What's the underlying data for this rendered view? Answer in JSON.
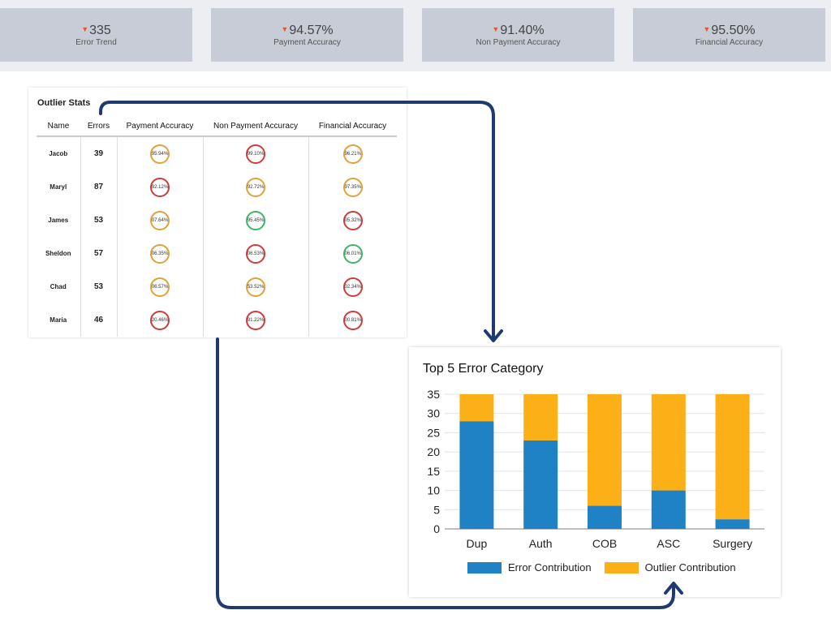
{
  "kpis": [
    {
      "value": "335",
      "label": "Error Trend"
    },
    {
      "value": "94.57%",
      "label": "Payment Accuracy"
    },
    {
      "value": "91.40%",
      "label": "Non Payment Accuracy"
    },
    {
      "value": "95.50%",
      "label": "Financial Accuracy"
    }
  ],
  "outlier_stats": {
    "title": "Outlier Stats",
    "columns": [
      "Name",
      "Errors",
      "Payment Accuracy",
      "Non Payment Accuracy",
      "Financial Accuracy"
    ],
    "rows": [
      {
        "name": "Jacob",
        "errors": "39",
        "payment": "95.94%",
        "non_payment": "99.10%",
        "financial": "96.21%"
      },
      {
        "name": "Maryl",
        "errors": "87",
        "payment": "92.12%",
        "non_payment": "92.72%",
        "financial": "97.35%"
      },
      {
        "name": "James",
        "errors": "53",
        "payment": "07.64%",
        "non_payment": "95.45%",
        "financial": "05.32%"
      },
      {
        "name": "Sheldon",
        "errors": "57",
        "payment": "06.35%",
        "non_payment": "06.53%",
        "financial": "06.01%"
      },
      {
        "name": "Chad",
        "errors": "53",
        "payment": "06.57%",
        "non_payment": "53.52%",
        "financial": "02.34%"
      },
      {
        "name": "Maria",
        "errors": "46",
        "payment": "20.46%",
        "non_payment": "91.22%",
        "financial": "00.81%"
      }
    ],
    "ring_colors": {
      "red": "#cf3b3b",
      "orange": "#e2a13b",
      "green": "#3cb663"
    },
    "ring_status": [
      [
        "orange",
        "red",
        "orange"
      ],
      [
        "red",
        "orange",
        "orange"
      ],
      [
        "orange",
        "green",
        "red"
      ],
      [
        "orange",
        "red",
        "green"
      ],
      [
        "orange",
        "orange",
        "red"
      ],
      [
        "red",
        "red",
        "red"
      ]
    ]
  },
  "chart_data": {
    "type": "bar",
    "stacked": true,
    "title": "Top 5 Error Category",
    "categories": [
      "Dup",
      "Auth",
      "COB",
      "ASC",
      "Surgery"
    ],
    "series": [
      {
        "name": "Error Contribution",
        "color": "#1f82c4",
        "values": [
          28,
          23,
          6,
          10,
          2.5
        ]
      },
      {
        "name": "Outlier Contribution",
        "color": "#fbb018",
        "values": [
          7,
          12,
          29,
          25,
          32.5
        ]
      }
    ],
    "ylim": [
      0,
      35
    ],
    "yticks": [
      "0",
      "5",
      "10",
      "15",
      "20",
      "25",
      "30",
      "35"
    ],
    "grid": true,
    "legend": "bottom"
  },
  "colors": {
    "kpi_card": "#c8ccd6",
    "down_arrow": "#e05a2b",
    "flow_arrow": "#1f3a73"
  }
}
